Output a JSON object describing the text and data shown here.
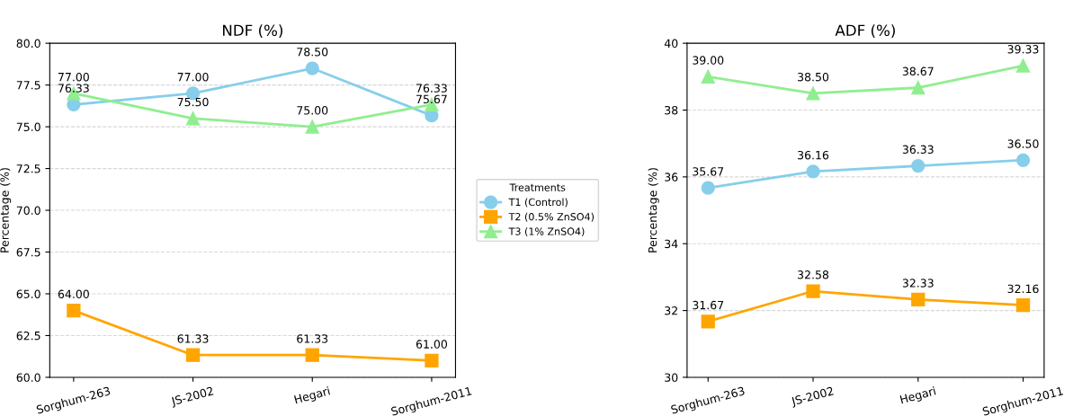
{
  "chart_data": [
    {
      "type": "line",
      "title": "NDF (%)",
      "ylabel": "Percentage (%)",
      "categories": [
        "Sorghum-263",
        "JS-2002",
        "Hegari",
        "Sorghum-2011"
      ],
      "ylim": [
        60,
        80
      ],
      "yticks": [
        {
          "value": 60,
          "label": "60.0"
        },
        {
          "value": 62.5,
          "label": "62.5"
        },
        {
          "value": 65,
          "label": "65.0"
        },
        {
          "value": 67.5,
          "label": "67.5"
        },
        {
          "value": 70,
          "label": "70.0"
        },
        {
          "value": 72.5,
          "label": "72.5"
        },
        {
          "value": 75,
          "label": "75.0"
        },
        {
          "value": 77.5,
          "label": "77.5"
        },
        {
          "value": 80,
          "label": "80.0"
        }
      ],
      "grid": "y",
      "legend": "right",
      "legend_title": "Treatments",
      "line_style": "solid",
      "series": [
        {
          "name": "T1 (Control)",
          "color": "#87ceeb",
          "marker": "circle",
          "values": [
            76.33,
            77.0,
            78.5,
            75.67
          ],
          "value_labels": [
            "76.33",
            "77.00",
            "78.50",
            "75.67"
          ]
        },
        {
          "name": "T2 (0.5% ZnSO4)",
          "color": "#ffa500",
          "marker": "square",
          "values": [
            64.0,
            61.33,
            61.33,
            61.0
          ],
          "value_labels": [
            "64.00",
            "61.33",
            "61.33",
            "61.00"
          ]
        },
        {
          "name": "T3 (1% ZnSO4)",
          "color": "#90ee90",
          "marker": "triangle",
          "values": [
            77.0,
            75.5,
            75.0,
            76.33
          ],
          "value_labels": [
            "77.00",
            "75.50",
            "75.00",
            "76.33"
          ]
        }
      ]
    },
    {
      "type": "line",
      "title": "ADF (%)",
      "ylabel": "Percentage (%)",
      "categories": [
        "Sorghum-263",
        "JS-2002",
        "Hegari",
        "Sorghum-2011"
      ],
      "ylim": [
        30,
        40
      ],
      "yticks": [
        30,
        32,
        34,
        36,
        38,
        40
      ],
      "grid": "y",
      "line_style": "solid",
      "series": [
        {
          "color": "#87ceeb",
          "marker": "circle",
          "values": [
            35.67,
            36.16,
            36.33,
            36.5
          ],
          "value_labels": [
            "35.67",
            "36.16",
            "36.33",
            "36.50"
          ]
        },
        {
          "color": "#ffa500",
          "marker": "square",
          "values": [
            31.67,
            32.58,
            32.33,
            32.16
          ],
          "value_labels": [
            "31.67",
            "32.58",
            "32.33",
            "32.16"
          ]
        },
        {
          "color": "#90ee90",
          "marker": "triangle",
          "values": [
            39.0,
            38.5,
            38.67,
            39.33
          ],
          "value_labels": [
            "39.00",
            "38.50",
            "38.67",
            "39.33"
          ]
        }
      ]
    }
  ]
}
